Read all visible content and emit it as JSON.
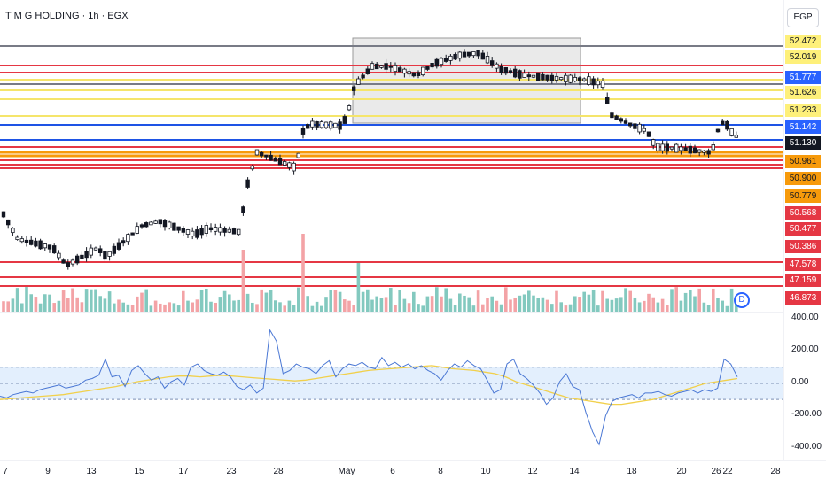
{
  "title": "T M G HOLDING · 1h · EGX",
  "currency": "EGP",
  "dividend_badge": "D",
  "colors": {
    "up": "#ffffff",
    "down": "#131722",
    "vol_up": "#83c9bf",
    "vol_down": "#f3a3a6",
    "osc_line": "#4a77d4",
    "osc_signal": "#f1d04b",
    "osc_band": "#e3effd",
    "level_red": "#e53744",
    "level_yellow": "#f5e56b",
    "level_blue": "#1e53e5",
    "level_orange": "#f79a0b",
    "level_gray": "#787b86",
    "badge_price": "#131722"
  },
  "price_badges": [
    {
      "label": "52.472",
      "bg": "#fef07a",
      "fg": "#131722"
    },
    {
      "label": "52.019",
      "bg": "#fef07a",
      "fg": "#131722"
    },
    {
      "label": "51.777",
      "bg": "#2962ff",
      "fg": "#ffffff"
    },
    {
      "label": "51.626",
      "bg": "#fef07a",
      "fg": "#131722"
    },
    {
      "label": "51.233",
      "bg": "#fef07a",
      "fg": "#131722"
    },
    {
      "label": "51.142",
      "bg": "#2962ff",
      "fg": "#ffffff"
    },
    {
      "label": "51.130",
      "bg": "#131722",
      "fg": "#ffffff"
    },
    {
      "label": "50.961",
      "bg": "#f79a0b",
      "fg": "#131722"
    },
    {
      "label": "50.900",
      "bg": "#f79a0b",
      "fg": "#131722"
    },
    {
      "label": "50.779",
      "bg": "#f79a0b",
      "fg": "#131722"
    },
    {
      "label": "50.568",
      "bg": "#e53744",
      "fg": "#ffffff"
    },
    {
      "label": "50.477",
      "bg": "#e53744",
      "fg": "#ffffff"
    },
    {
      "label": "50.386",
      "bg": "#e53744",
      "fg": "#ffffff"
    },
    {
      "label": "47.578",
      "bg": "#e53744",
      "fg": "#ffffff"
    },
    {
      "label": "47.159",
      "bg": "#e53744",
      "fg": "#ffffff"
    },
    {
      "label": "46.873",
      "bg": "#e53744",
      "fg": "#ffffff"
    }
  ],
  "oscillator_axis": [
    "400.00",
    "200.00",
    "0.00",
    "-200.00",
    "-400.00"
  ],
  "oscillator_range": [
    -450,
    400
  ],
  "oscillator_band": [
    -100,
    100
  ],
  "date_labels": [
    "7",
    "9",
    "13",
    "15",
    "17",
    "23",
    "28",
    "May",
    "6",
    "8",
    "10",
    "12",
    "14",
    "18",
    "20",
    "22",
    "26",
    "28"
  ],
  "chart_data": {
    "type": "candlestick",
    "title": "T M G HOLDING · 1h · EGX",
    "currency": "EGP",
    "price_scale": [
      "52.472",
      "52.019",
      "51.777",
      "51.626",
      "51.233",
      "51.142",
      "51.130",
      "50.961",
      "50.900",
      "50.779",
      "50.568",
      "50.477",
      "50.386",
      "47.578",
      "47.159",
      "46.873"
    ],
    "last_price": 51.13,
    "x_labels": [
      "7",
      "9",
      "13",
      "15",
      "17",
      "23",
      "28",
      "May",
      "6",
      "8",
      "10",
      "12",
      "14",
      "18",
      "20",
      "22",
      "26",
      "28"
    ],
    "horizontal_levels": [
      {
        "color": "gray",
        "price": 52.6
      },
      {
        "color": "red",
        "price": 52.1
      },
      {
        "color": "red",
        "price": 51.95
      },
      {
        "color": "yellow",
        "price": 51.85
      },
      {
        "color": "gray",
        "price": 51.77
      },
      {
        "color": "yellow",
        "price": 51.626
      },
      {
        "color": "yellow",
        "price": 51.45
      },
      {
        "color": "yellow",
        "price": 51.233
      },
      {
        "color": "blue",
        "price": 51.142
      },
      {
        "color": "blue",
        "price": 51.05
      },
      {
        "color": "red",
        "price": 50.961
      },
      {
        "color": "orange",
        "price": 50.9
      },
      {
        "color": "orange",
        "price": 50.85
      },
      {
        "color": "red",
        "price": 50.779
      },
      {
        "color": "red",
        "price": 50.72
      },
      {
        "color": "red",
        "price": 50.68
      },
      {
        "color": "red",
        "price": 47.578
      },
      {
        "color": "red",
        "price": 47.159
      },
      {
        "color": "red",
        "price": 46.873
      }
    ],
    "oscillator": {
      "y_ticks": [
        400,
        200,
        0,
        -200,
        -400
      ],
      "band": [
        -100,
        100
      ],
      "line": [
        -80,
        -90,
        -70,
        -60,
        -50,
        -60,
        -40,
        -30,
        -20,
        -10,
        -30,
        -20,
        -10,
        20,
        30,
        50,
        150,
        40,
        50,
        -20,
        80,
        110,
        60,
        20,
        40,
        -30,
        10,
        30,
        -10,
        100,
        120,
        80,
        60,
        50,
        70,
        40,
        -20,
        -40,
        -10,
        -60,
        -30,
        330,
        260,
        60,
        80,
        120,
        100,
        90,
        60,
        110,
        140,
        40,
        90,
        120,
        110,
        130,
        100,
        90,
        160,
        110,
        130,
        100,
        120,
        90,
        110,
        80,
        60,
        20,
        80,
        120,
        100,
        140,
        110,
        90,
        20,
        -60,
        -40,
        120,
        150,
        60,
        30,
        -10,
        -60,
        -130,
        -90,
        10,
        60,
        -20,
        -40,
        -180,
        -300,
        -380,
        -200,
        -110,
        -90,
        -80,
        -70,
        -90,
        -60,
        -60,
        -50,
        -70,
        -80,
        -60,
        -50,
        -40,
        -60,
        -40,
        -50,
        -30,
        150,
        120,
        40
      ],
      "signal": [
        -100,
        -95,
        -90,
        -85,
        -80,
        -75,
        -70,
        -60,
        -50,
        -40,
        -30,
        -20,
        -5,
        10,
        20,
        30,
        40,
        45,
        45,
        40,
        45,
        50,
        45,
        40,
        35,
        30,
        25,
        20,
        15,
        20,
        30,
        40,
        50,
        60,
        70,
        80,
        85,
        90,
        95,
        100,
        105,
        110,
        100,
        90,
        85,
        80,
        70,
        60,
        40,
        10,
        -10,
        -30,
        -50,
        -70,
        -90,
        -100,
        -110,
        -120,
        -130,
        -130,
        -120,
        -110,
        -100,
        -80,
        -60,
        -40,
        -20,
        0,
        10,
        20,
        30
      ]
    },
    "volume_colors": "teal = up bar, pink = down bar"
  }
}
